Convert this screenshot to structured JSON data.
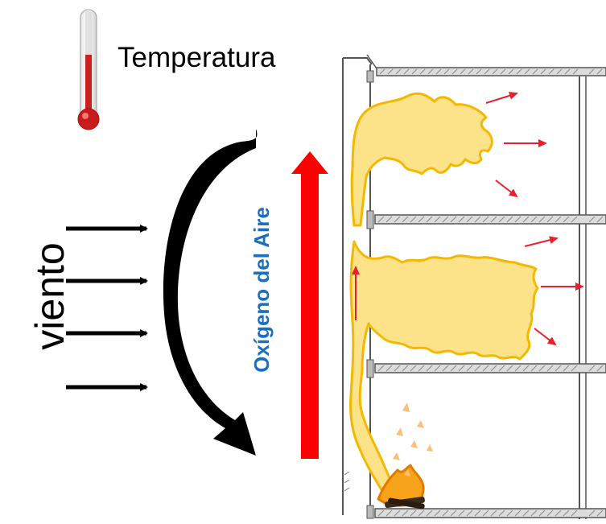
{
  "legend": {
    "label": "Temperatura",
    "icon": "thermometer-icon"
  },
  "wind": {
    "label": "viento",
    "arrow_count": 4
  },
  "air": {
    "label": "Oxígeno del Aire",
    "label_color": "#1a6fc0"
  },
  "colors": {
    "flame_fill": "#fce38a",
    "flame_stroke": "#f5b800",
    "heat_arrow": "#e8202a",
    "air_arrow": "#ff0000",
    "thermometer": "#cc1f1f"
  }
}
